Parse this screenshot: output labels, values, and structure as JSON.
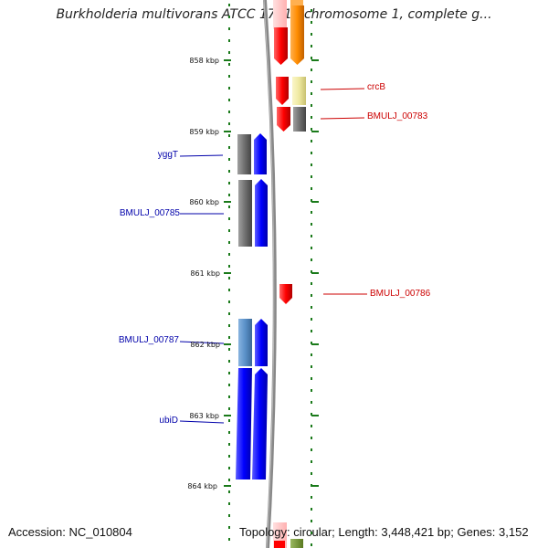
{
  "title": "Burkholderia multivorans ATCC 17616 chromosome 1, complete g...",
  "footer": {
    "accession": "Accession: NC_010804",
    "topology": "Topology: circular; Length: 3,448,421 bp; Genes: 3,152"
  },
  "ruler": {
    "unit": "kbp",
    "ticks": [
      {
        "label": "858 kbp",
        "kbp": 858
      },
      {
        "label": "859 kbp",
        "kbp": 859
      },
      {
        "label": "860 kbp",
        "kbp": 860
      },
      {
        "label": "861 kbp",
        "kbp": 861
      },
      {
        "label": "862 kbp",
        "kbp": 862
      },
      {
        "label": "863 kbp",
        "kbp": 863
      },
      {
        "label": "864 kbp",
        "kbp": 864
      }
    ]
  },
  "genes_labeled": [
    {
      "name": "crcB",
      "strand": "forward"
    },
    {
      "name": "BMULJ_00783",
      "strand": "forward"
    },
    {
      "name": "yggT",
      "strand": "reverse"
    },
    {
      "name": "BMULJ_00785",
      "strand": "reverse"
    },
    {
      "name": "BMULJ_00786",
      "strand": "forward"
    },
    {
      "name": "BMULJ_00787",
      "strand": "reverse"
    },
    {
      "name": "ubiD",
      "strand": "reverse"
    }
  ],
  "colors": {
    "forward_label": "#cc0000",
    "reverse_label": "#0000aa",
    "cds_forward": "#ff0000",
    "cds_reverse": "#0000ff",
    "orange_feature": "#ff8c00",
    "pale_yellow_feature": "#eee8a0",
    "gray_feature": "#707070",
    "light_blue_feature": "#5a90c8",
    "backbone": "#888888",
    "ticks": "#1a7a1a"
  }
}
